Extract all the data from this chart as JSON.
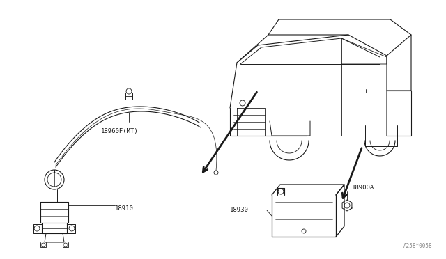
{
  "bg_color": "#ffffff",
  "line_color": "#1a1a1a",
  "fig_width": 6.4,
  "fig_height": 3.72,
  "dpi": 100,
  "watermark": "A258*0058",
  "label_18910": "18910",
  "label_18960": "18960F(MT)",
  "label_18930": "18930",
  "label_18900A": "18900A",
  "font_size": 6.5
}
